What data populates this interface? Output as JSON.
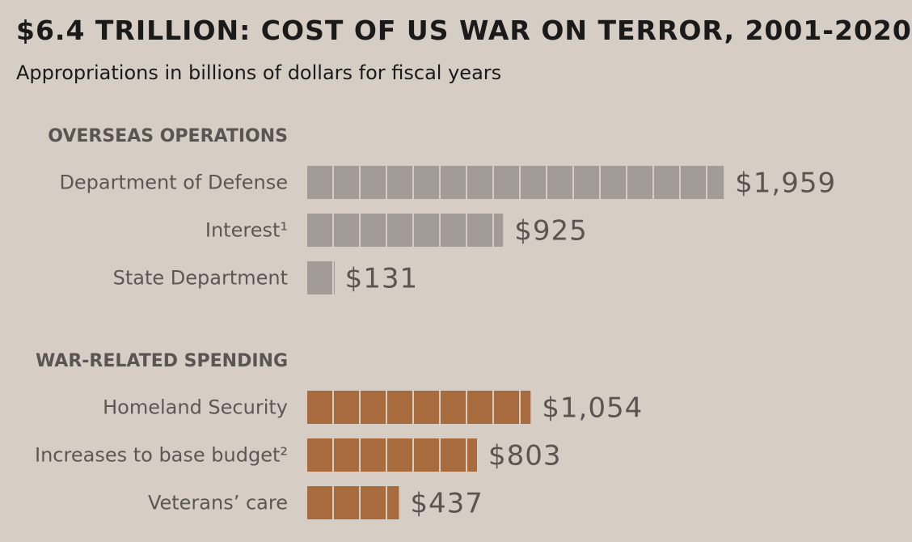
{
  "chart_data": {
    "type": "bar",
    "title": "$6.4 TRILLION: COST OF US WAR ON TERROR, 2001-2020",
    "subtitle": "Appropriations in billions of dollars for fiscal years",
    "unit_per_block": 125,
    "groups": [
      {
        "name": "OVERSEAS OPERATIONS",
        "color": "#a39b97",
        "categories": [
          "Department of Defense",
          "Interest¹",
          "State Department"
        ],
        "values": [
          1959,
          925,
          131
        ],
        "labels": [
          "$1,959",
          "$925",
          "$131"
        ]
      },
      {
        "name": "WAR-RELATED SPENDING",
        "color": "#a86b3d",
        "categories": [
          "Homeland Security",
          "Increases to base budget²",
          "Veterans’ care"
        ],
        "values": [
          1054,
          803,
          437
        ],
        "labels": [
          "$1,054",
          "$803",
          "$437"
        ]
      }
    ]
  }
}
